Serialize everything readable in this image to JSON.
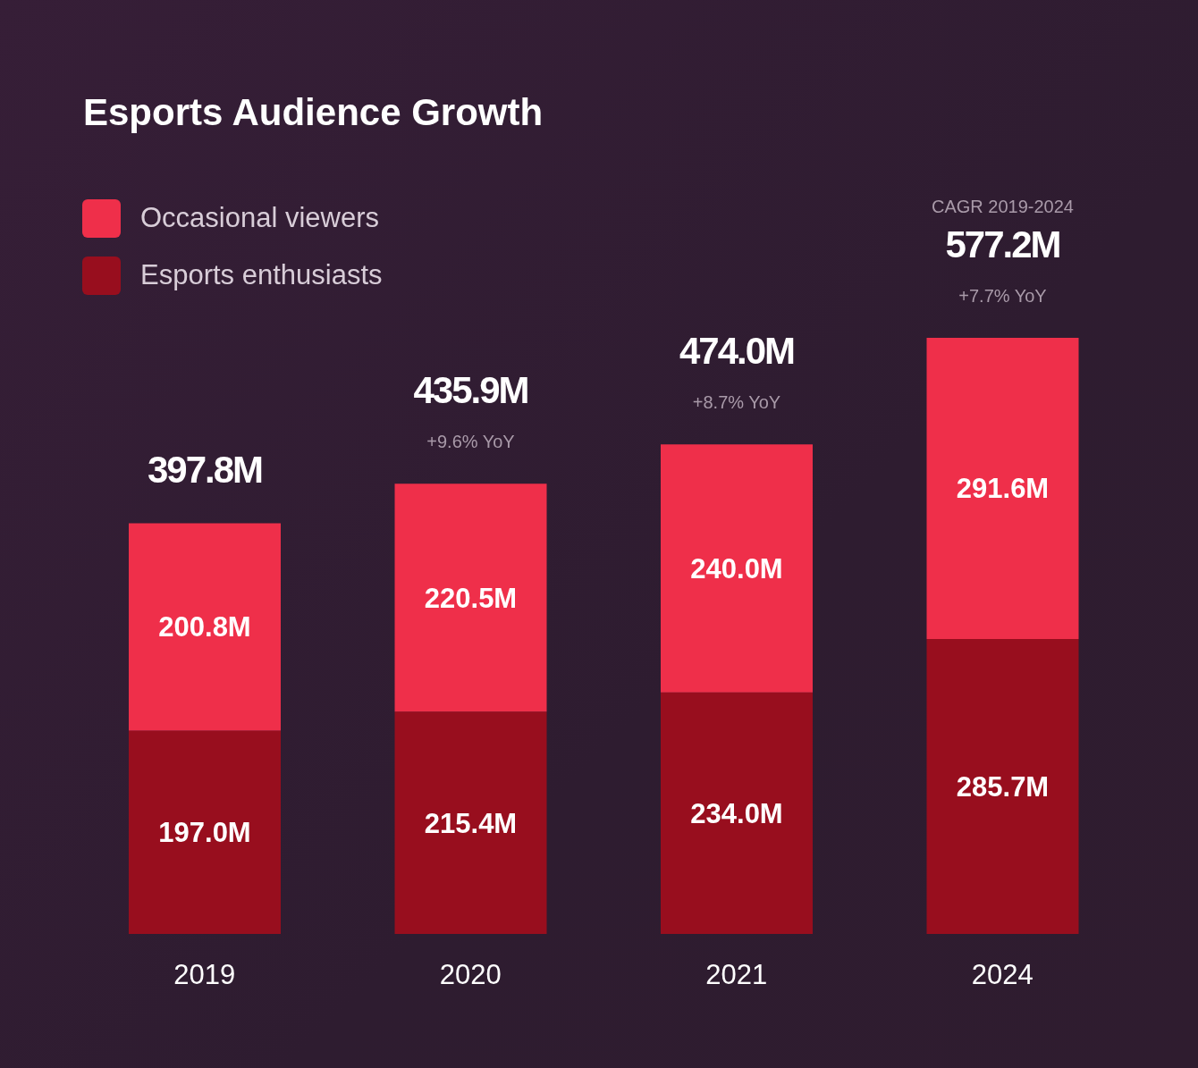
{
  "chart_data": {
    "type": "bar",
    "title": "Esports Audience Growth",
    "categories": [
      "2019",
      "2020",
      "2021",
      "2024"
    ],
    "stacked": true,
    "legend": "top left",
    "series": [
      {
        "name": "Esports enthusiasts",
        "color": "#980e1e",
        "values": [
          197.0,
          215.4,
          234.0,
          285.7
        ],
        "value_labels": [
          "197.0M",
          "215.4M",
          "234.0M",
          "285.7M"
        ]
      },
      {
        "name": "Occasional viewers",
        "color": "#ef2f4a",
        "values": [
          200.8,
          220.5,
          240.0,
          291.6
        ],
        "value_labels": [
          "200.8M",
          "220.5M",
          "240.0M",
          "291.6M"
        ]
      }
    ],
    "totals": [
      "397.8M",
      "435.9M",
      "474.0M",
      "577.2M"
    ],
    "annotations": [
      {
        "text": "+9.6% YoY",
        "x": "2020",
        "y": 435.9
      },
      {
        "text": "+8.7% YoY",
        "x": "2021",
        "y": 474.0
      },
      "CAGR 2019-2024",
      {
        "text": "+7.7% YoY",
        "x": "2024",
        "y": 577.2
      }
    ]
  }
}
